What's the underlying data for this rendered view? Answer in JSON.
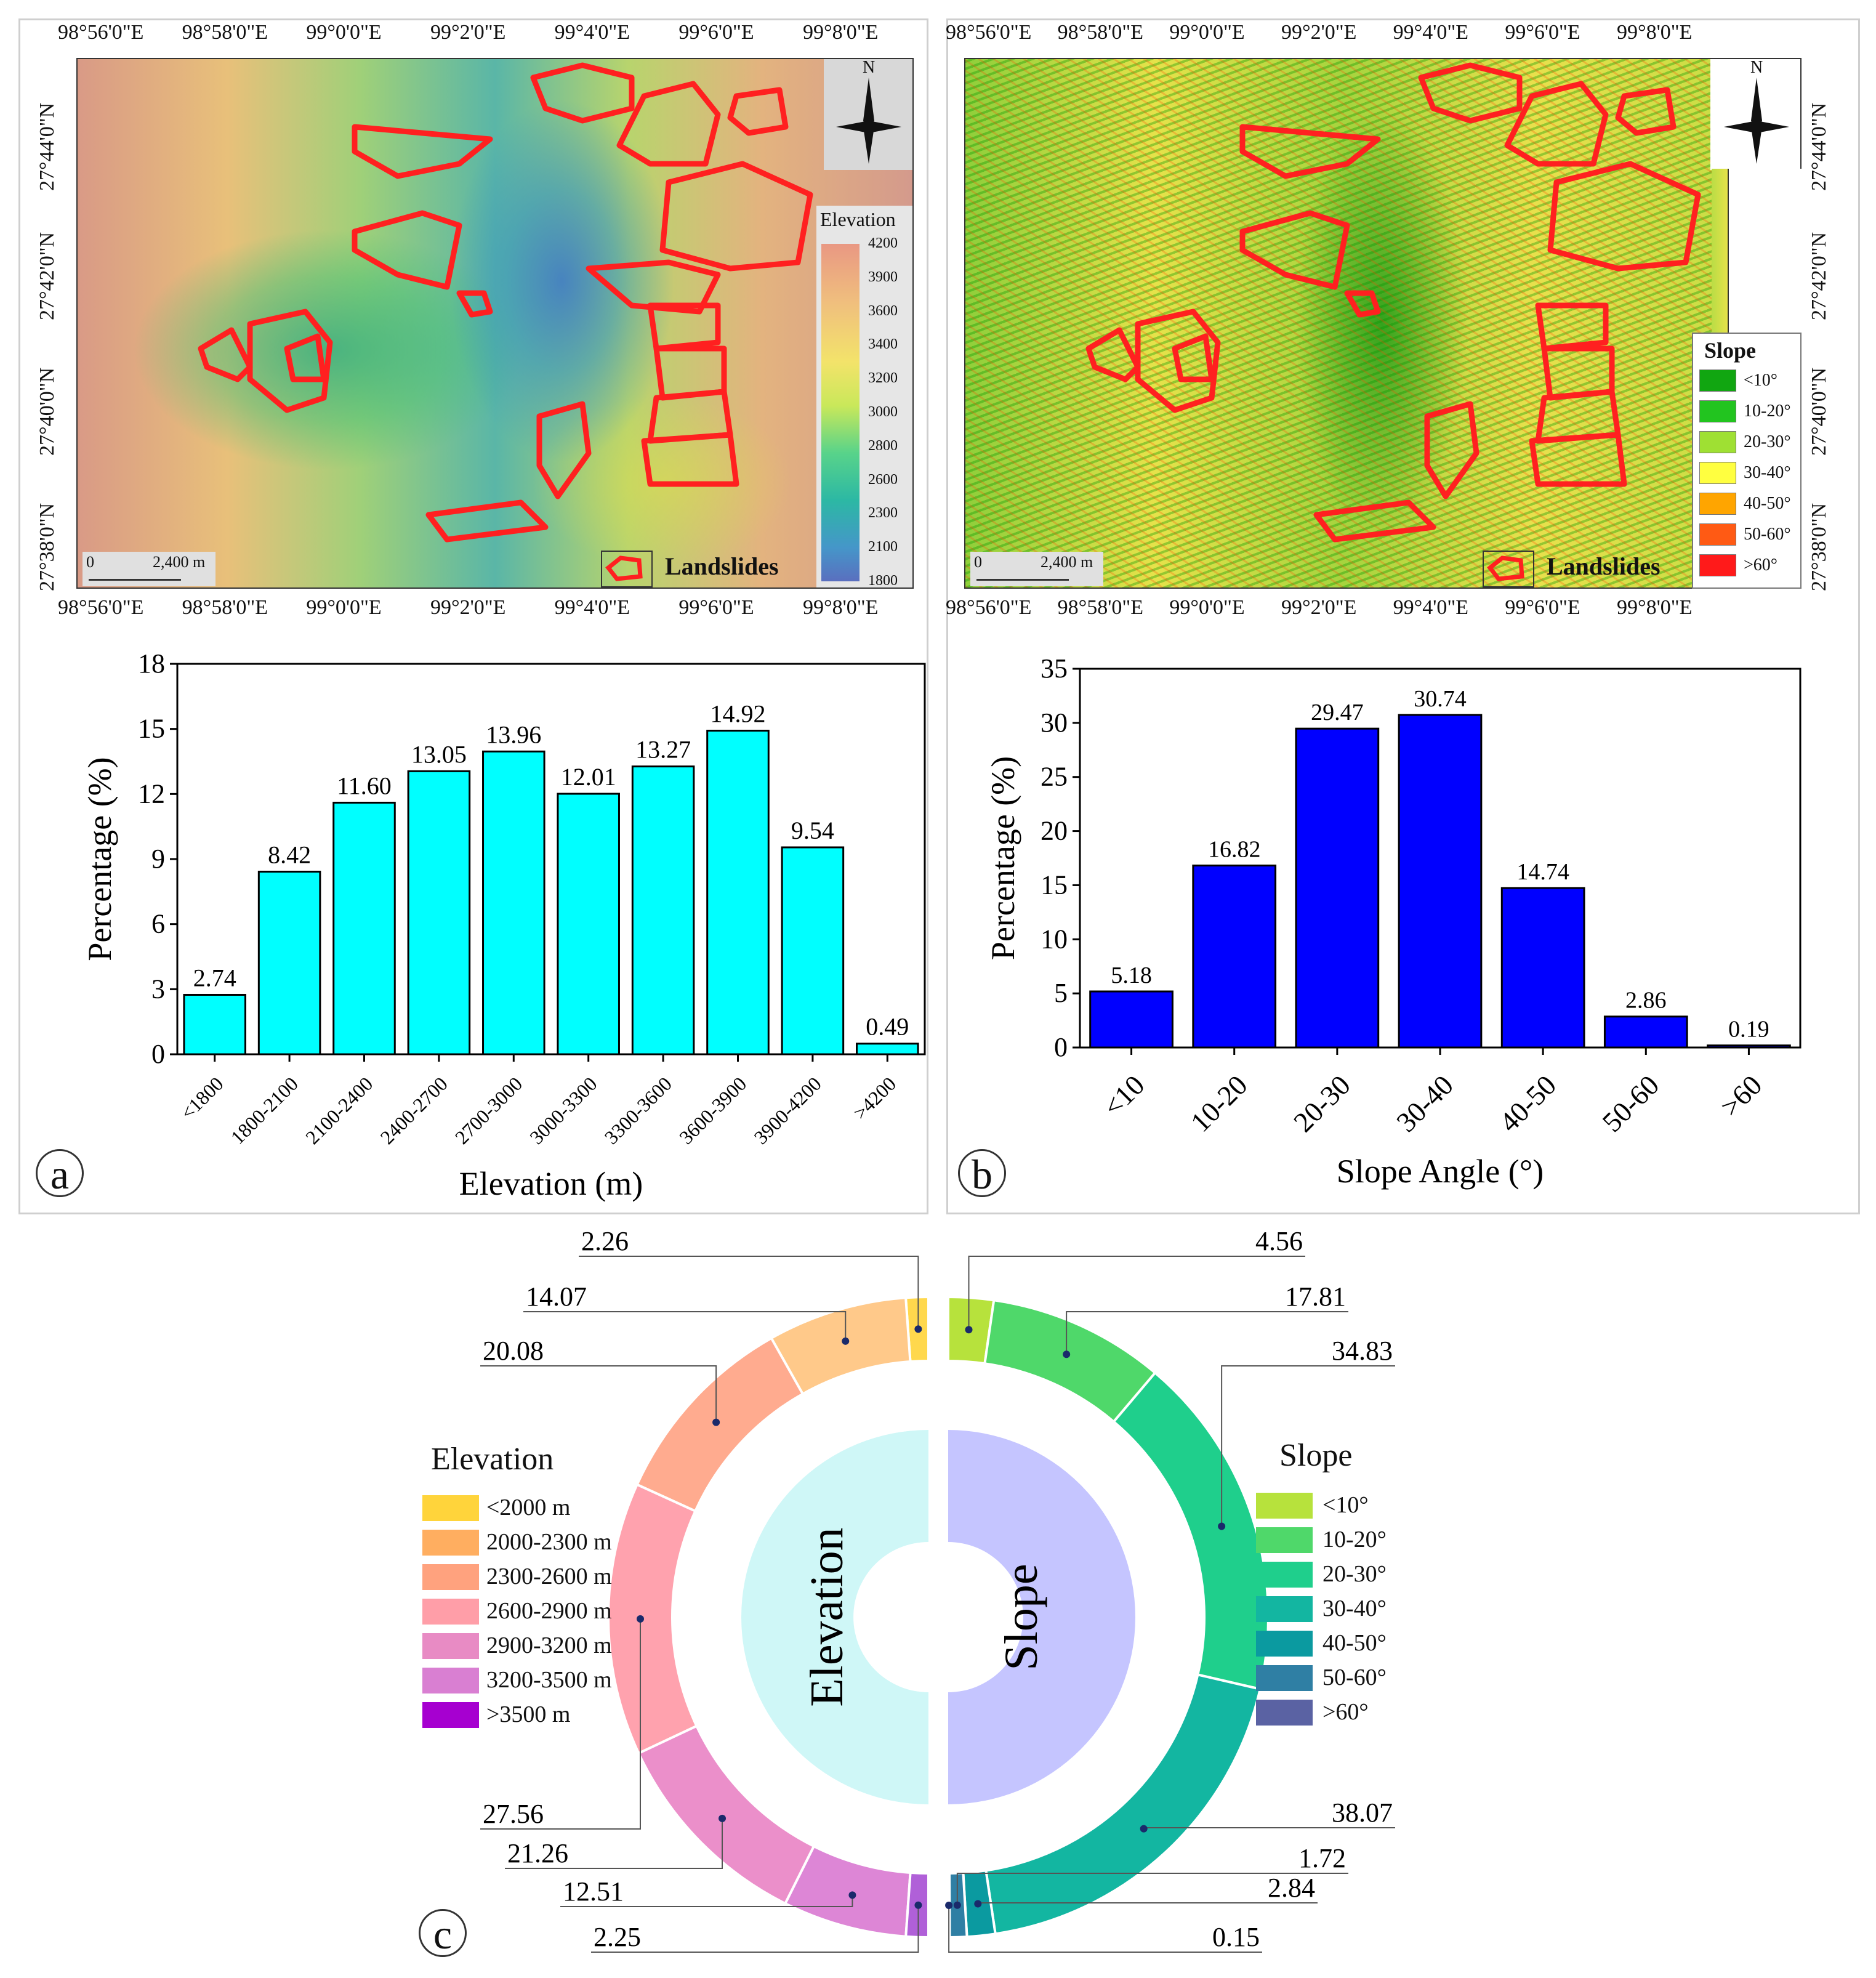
{
  "map_a": {
    "lon_ticks": [
      "98°56'0\"E",
      "98°58'0\"E",
      "99°0'0\"E",
      "99°2'0\"E",
      "99°4'0\"E",
      "99°6'0\"E",
      "99°8'0\"E"
    ],
    "lat_ticks": [
      "27°44'0\"N",
      "27°42'0\"N",
      "27°40'0\"N",
      "27°38'0\"N"
    ],
    "north_label": "N",
    "legend_title": "Elevation",
    "legend_values": [
      "4200",
      "3900",
      "3600",
      "3400",
      "3200",
      "3000",
      "2800",
      "2600",
      "2300",
      "2100",
      "1800"
    ],
    "scale_left": "0",
    "scale_right": "2,400 m",
    "landslides_label": "Landslides"
  },
  "map_b": {
    "lon_ticks": [
      "98°56'0\"E",
      "98°58'0\"E",
      "99°0'0\"E",
      "99°2'0\"E",
      "99°4'0\"E",
      "99°6'0\"E",
      "99°8'0\"E"
    ],
    "lat_ticks": [
      "27°44'0\"N",
      "27°42'0\"N",
      "27°40'0\"N",
      "27°38'0\"N"
    ],
    "north_label": "N",
    "legend_title": "Slope",
    "legend_items": [
      {
        "label": "<10°",
        "color": "#11a611"
      },
      {
        "label": "10-20°",
        "color": "#22c41f"
      },
      {
        "label": "20-30°",
        "color": "#9fe033"
      },
      {
        "label": "30-40°",
        "color": "#ffff40"
      },
      {
        "label": "40-50°",
        "color": "#ffa500"
      },
      {
        "label": "50-60°",
        "color": "#ff5a14"
      },
      {
        "label": ">60°",
        "color": "#ff1a1a"
      }
    ],
    "scale_left": "0",
    "scale_right": "2,400 m",
    "landslides_label": "Landslides"
  },
  "chart_data": [
    {
      "id": "a",
      "type": "bar",
      "panel_label": "a",
      "categories": [
        "<1800",
        "1800-2100",
        "2100-2400",
        "2400-2700",
        "2700-3000",
        "3000-3300",
        "3300-3600",
        "3600-3900",
        "3900-4200",
        ">4200"
      ],
      "values": [
        2.74,
        8.42,
        11.6,
        13.05,
        13.96,
        12.01,
        13.27,
        14.92,
        9.54,
        0.49
      ],
      "value_labels": [
        "2.74",
        "8.42",
        "11.60",
        "13.05",
        "13.96",
        "12.01",
        "13.27",
        "14.92",
        "9.54",
        "0.49"
      ],
      "xlabel": "Elevation (m)",
      "ylabel": "Percentage (%)",
      "ylim": [
        0,
        18
      ],
      "yticks": [
        "0",
        "3",
        "6",
        "9",
        "12",
        "15",
        "18"
      ],
      "bar_color": "#00ffff"
    },
    {
      "id": "b",
      "type": "bar",
      "panel_label": "b",
      "categories": [
        "<10",
        "10-20",
        "20-30",
        "30-40",
        "40-50",
        "50-60",
        ">60"
      ],
      "values": [
        5.18,
        16.82,
        29.47,
        30.74,
        14.74,
        2.86,
        0.19
      ],
      "value_labels": [
        "5.18",
        "16.82",
        "29.47",
        "30.74",
        "14.74",
        "2.86",
        "0.19"
      ],
      "xlabel": "Slope Angle (°)",
      "ylabel": "Percentage (%)",
      "ylim": [
        0,
        35
      ],
      "yticks": [
        "0",
        "5",
        "10",
        "15",
        "20",
        "25",
        "30",
        "35"
      ],
      "bar_color": "#0000ff"
    },
    {
      "id": "c",
      "type": "pie",
      "panel_label": "c",
      "elevation": {
        "title": "Elevation",
        "center_label": "Elevation",
        "categories": [
          "<2000 m",
          "2000-2300 m",
          "2300-2600 m",
          "2600-2900 m",
          "2900-3200 m",
          "3200-3500 m",
          ">3500 m"
        ],
        "colors": [
          "#ffd43b",
          "#ffae60",
          "#ffa27e",
          "#ff9ea8",
          "#e88bc4",
          "#d97fd2",
          "#a600d0"
        ],
        "ring_colors": [
          "#ffd84d",
          "#ffc98a",
          "#ffab8f",
          "#ffa2ae",
          "#eb8fca",
          "#dd86d6",
          "#b060d8"
        ],
        "values": [
          2.26,
          14.07,
          20.08,
          27.56,
          21.26,
          12.51,
          2.25
        ],
        "value_labels": [
          "2.26",
          "14.07",
          "20.08",
          "27.56",
          "21.26",
          "12.51",
          "2.25"
        ]
      },
      "slope": {
        "title": "Slope",
        "center_label": "Slope",
        "categories": [
          "<10°",
          "10-20°",
          "20-30°",
          "30-40°",
          "40-50°",
          "50-60°",
          ">60°"
        ],
        "colors": [
          "#b7e23c",
          "#4fd86a",
          "#1fcf8c",
          "#13b6a1",
          "#0b9aa0",
          "#2f7fa4",
          "#5a62a3"
        ],
        "values": [
          4.56,
          17.81,
          34.83,
          38.07,
          2.84,
          1.72,
          0.15
        ],
        "value_labels": [
          "4.56",
          "17.81",
          "34.83",
          "38.07",
          "2.84",
          "1.72",
          "0.15"
        ]
      }
    }
  ]
}
